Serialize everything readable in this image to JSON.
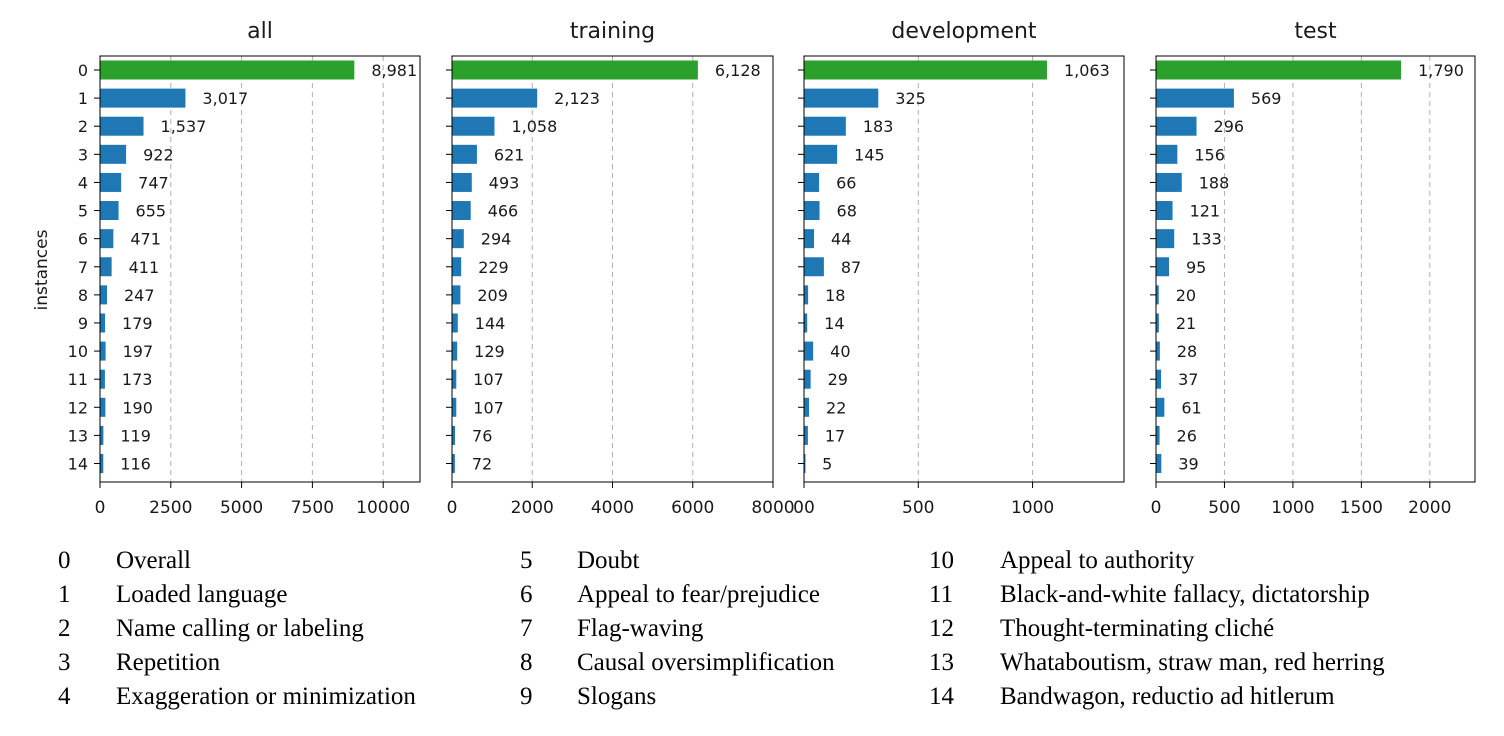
{
  "chart_data": {
    "type": "bar",
    "orientation": "horizontal",
    "ylabel": "instances",
    "categories": [
      "0",
      "1",
      "2",
      "3",
      "4",
      "5",
      "6",
      "7",
      "8",
      "9",
      "10",
      "11",
      "12",
      "13",
      "14"
    ],
    "grid": "x-dashed",
    "highlight_color": "#2ca02c",
    "bar_color": "#1f77b4",
    "panels": [
      {
        "title": "all",
        "values": [
          8981,
          3017,
          1537,
          922,
          747,
          655,
          471,
          411,
          247,
          179,
          197,
          173,
          190,
          119,
          116
        ],
        "labels": [
          "8,981",
          "3,017",
          "1,537",
          "922",
          "747",
          "655",
          "471",
          "411",
          "247",
          "179",
          "197",
          "173",
          "190",
          "119",
          "116"
        ],
        "xlim": [
          0,
          11300
        ],
        "xticks": [
          0,
          2500,
          5000,
          7500,
          10000
        ],
        "xtick_labels": [
          "0",
          "2500",
          "5000",
          "7500",
          "10000"
        ]
      },
      {
        "title": "training",
        "values": [
          6128,
          2123,
          1058,
          621,
          493,
          466,
          294,
          229,
          209,
          144,
          129,
          107,
          107,
          76,
          72
        ],
        "labels": [
          "6,128",
          "2,123",
          "1,058",
          "621",
          "493",
          "466",
          "294",
          "229",
          "209",
          "144",
          "129",
          "107",
          "107",
          "76",
          "72"
        ],
        "xlim": [
          0,
          8000
        ],
        "xticks": [
          0,
          2000,
          4000,
          6000,
          8000
        ],
        "xtick_labels": [
          "0",
          "2000",
          "4000",
          "6000",
          "8000"
        ]
      },
      {
        "title": "development",
        "values": [
          1063,
          325,
          183,
          145,
          66,
          68,
          44,
          87,
          18,
          14,
          40,
          29,
          22,
          17,
          5
        ],
        "labels": [
          "1,063",
          "325",
          "183",
          "145",
          "66",
          "68",
          "44",
          "87",
          "18",
          "14",
          "40",
          "29",
          "22",
          "17",
          "5"
        ],
        "xlim": [
          0,
          1400
        ],
        "xticks": [
          0,
          500,
          1000
        ],
        "xtick_labels": [
          "00",
          "500",
          "1000"
        ]
      },
      {
        "title": "test",
        "values": [
          1790,
          569,
          296,
          156,
          188,
          121,
          133,
          95,
          20,
          21,
          28,
          37,
          61,
          26,
          39
        ],
        "labels": [
          "1,790",
          "569",
          "296",
          "156",
          "188",
          "121",
          "133",
          "95",
          "20",
          "21",
          "28",
          "37",
          "61",
          "26",
          "39"
        ],
        "xlim": [
          0,
          2330
        ],
        "xticks": [
          0,
          500,
          1000,
          1500,
          2000
        ],
        "xtick_labels": [
          "0",
          "500",
          "1000",
          "1500",
          "2000"
        ]
      }
    ]
  },
  "legend": [
    [
      {
        "num": "0",
        "text": "Overall"
      },
      {
        "num": "1",
        "text": "Loaded language"
      },
      {
        "num": "2",
        "text": "Name calling or labeling"
      },
      {
        "num": "3",
        "text": "Repetition"
      },
      {
        "num": "4",
        "text": "Exaggeration or minimization"
      }
    ],
    [
      {
        "num": "5",
        "text": "Doubt"
      },
      {
        "num": "6",
        "text": "Appeal to fear/prejudice"
      },
      {
        "num": "7",
        "text": "Flag-waving"
      },
      {
        "num": "8",
        "text": "Causal oversimplification"
      },
      {
        "num": "9",
        "text": "Slogans"
      }
    ],
    [
      {
        "num": "10",
        "text": "Appeal to authority"
      },
      {
        "num": "11",
        "text": "Black-and-white fallacy, dictatorship"
      },
      {
        "num": "12",
        "text": "Thought-terminating cliché"
      },
      {
        "num": "13",
        "text": "Whataboutism, straw man, red herring"
      },
      {
        "num": "14",
        "text": "Bandwagon, reductio ad hitlerum"
      }
    ]
  ]
}
